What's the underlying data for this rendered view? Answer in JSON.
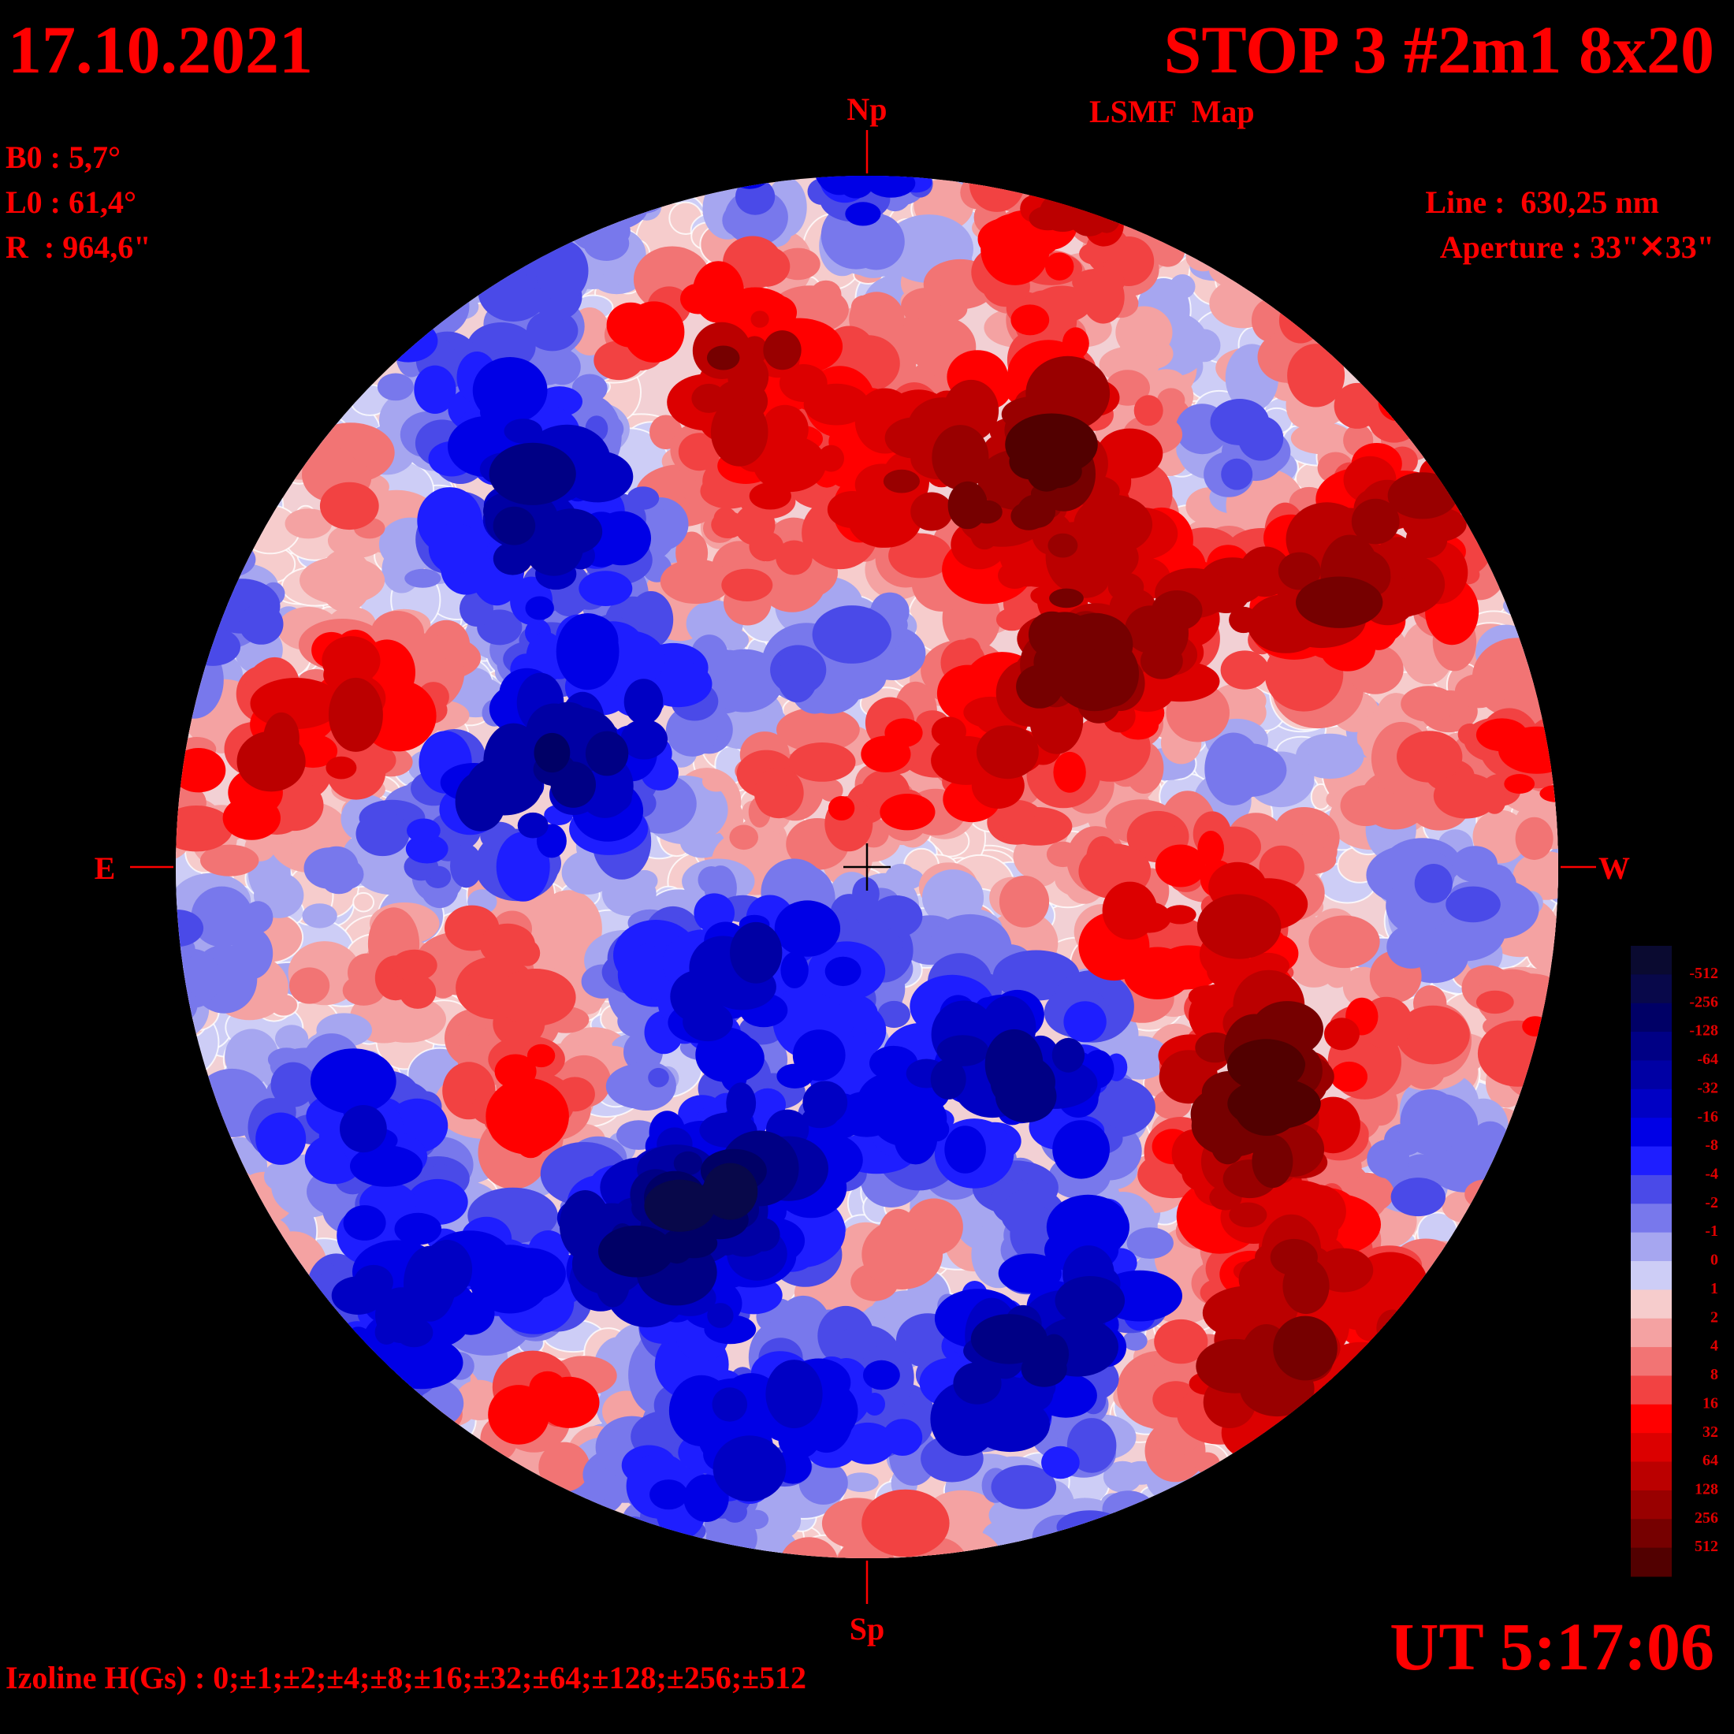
{
  "header": {
    "date": "17.10.2021",
    "title": "STOP 3 #2m1 8x20",
    "subtitle": "LSMF  Map"
  },
  "parameters": [
    "B0 : 5,7°",
    "L0 : 61,4°",
    "R  : 964,6\""
  ],
  "instrument": [
    "Line :  630,25 nm",
    "Aperture : 33\"✕33\""
  ],
  "directions": {
    "north": "Np",
    "south": "Sp",
    "east": "E",
    "west": "W"
  },
  "time": "UT 5:17:06",
  "isolines": "Izoline H(Gs) : 0;±1;±2;±4;±8;±16;±32;±64;±128;±256;±512",
  "colorbar": {
    "labels": [
      -512,
      -256,
      -128,
      -64,
      -32,
      -16,
      -8,
      -4,
      -2,
      -1,
      0,
      1,
      2,
      4,
      8,
      16,
      32,
      64,
      128,
      256,
      512
    ]
  }
}
